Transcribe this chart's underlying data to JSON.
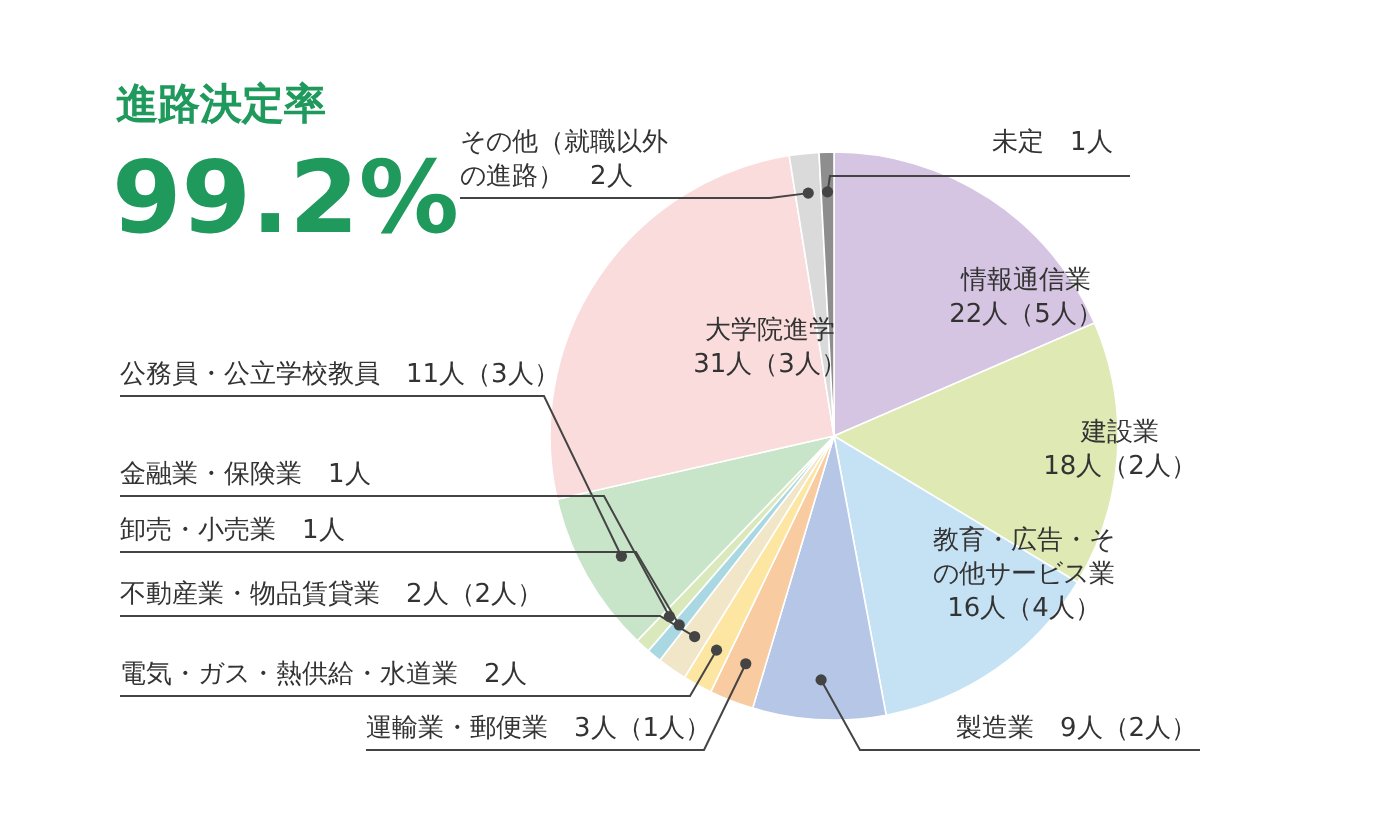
{
  "chart_data": {
    "type": "pie",
    "title": "進路決定率",
    "subtitle": "99.2%",
    "categories": [
      "情報通信業",
      "建設業",
      "教育・広告・その他サービス業",
      "製造業",
      "運輸業・郵便業",
      "電気・ガス・熱供給・水道業",
      "不動産業・物品賃貸業",
      "卸売・小売業",
      "金融業・保険業",
      "公務員・公立学校教員",
      "大学院進学",
      "その他（就職以外の進路）",
      "未定"
    ],
    "values": [
      22,
      18,
      16,
      9,
      3,
      2,
      2,
      1,
      1,
      11,
      31,
      2,
      1
    ],
    "colors": [
      "#d5c5e2",
      "#dfe9b3",
      "#c5e2f5",
      "#b6c6e6",
      "#f8cba0",
      "#fce6a2",
      "#f2e6c8",
      "#a9d8e3",
      "#d9e9bc",
      "#c9e5c9",
      "#fadcdc",
      "#dadada",
      "#8e8e8e"
    ],
    "value_labels": [
      "22人（5人）",
      "18人（2人）",
      "16人（4人）",
      "9人（2人）",
      "3人（1人）",
      "2人",
      "2人（2人）",
      "1人",
      "1人",
      "11人（3人）",
      "31人（3人）",
      "2人",
      "1人"
    ]
  }
}
